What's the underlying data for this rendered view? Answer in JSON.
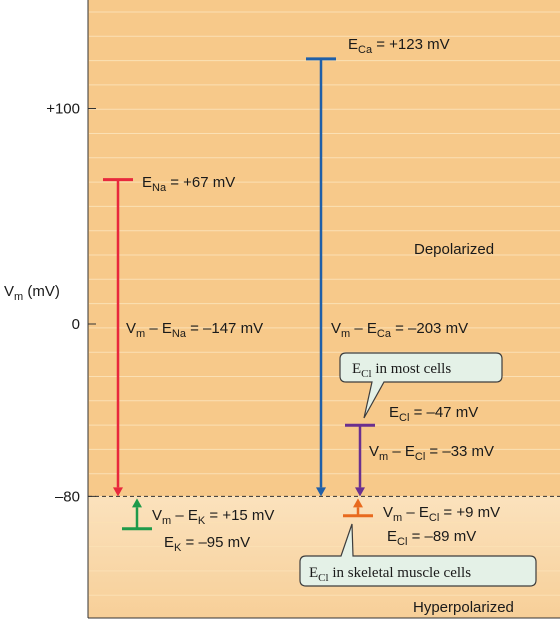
{
  "axis": {
    "label_main": "V",
    "label_sub": "m",
    "label_unit": " (mV)",
    "ticks": [
      {
        "value": 100,
        "label": "+100"
      },
      {
        "value": 0,
        "label": "0"
      },
      {
        "value": -80,
        "label": "–80"
      }
    ]
  },
  "regions": {
    "depolarized": "Depolarized",
    "hyperpolarized": "Hyperpolarized"
  },
  "resting_potential": -80,
  "levels": [
    {
      "id": "na",
      "value": 67,
      "color": "#e8283c",
      "main": "E",
      "sub": "Na",
      "rest": " = +67 mV"
    },
    {
      "id": "ca",
      "value": 123,
      "color": "#1f5fa8",
      "main": "E",
      "sub": "Ca",
      "rest": " = +123 mV"
    },
    {
      "id": "cl-most",
      "value": -47,
      "color": "#6a2f8f",
      "main": "E",
      "sub": "Cl",
      "rest": " = –47 mV"
    },
    {
      "id": "k",
      "value": -95,
      "color": "#1e9a4a",
      "main": "E",
      "sub": "K",
      "rest": " = –95 mV"
    },
    {
      "id": "cl-skeletal",
      "value": -89,
      "color": "#e86a1e",
      "main": "E",
      "sub": "Cl",
      "rest": " = –89 mV"
    }
  ],
  "driving_forces": [
    {
      "id": "na",
      "pre": "V",
      "pre_sub": "m",
      "mid": " – E",
      "mid_sub": "Na",
      "rest": " =  –147 mV"
    },
    {
      "id": "ca",
      "pre": "V",
      "pre_sub": "m",
      "mid": " – E",
      "mid_sub": "Ca",
      "rest": " =  –203 mV"
    },
    {
      "id": "cl-most",
      "pre": "V",
      "pre_sub": "m",
      "mid": " – E",
      "mid_sub": "Cl",
      "rest": " =  –33 mV"
    },
    {
      "id": "k",
      "pre": "V",
      "pre_sub": "m",
      "mid": " – E",
      "mid_sub": "K",
      "rest": " =  +15 mV"
    },
    {
      "id": "cl-skeletal",
      "pre": "V",
      "pre_sub": "m",
      "mid": " – E",
      "mid_sub": "Cl",
      "rest": " =  +9 mV"
    }
  ],
  "callouts": {
    "most_cells": {
      "main": "E",
      "sub": "Cl",
      "rest": " in most cells"
    },
    "skeletal": {
      "main": "E",
      "sub": "Cl",
      "rest": " in skeletal muscle cells"
    }
  },
  "colors": {
    "panel": "#f7c98a",
    "panel_light": "#fce3bc",
    "stripe": "#fbdfb2",
    "callout_fill": "#e4f1e7",
    "callout_stroke": "#3d3d3d"
  }
}
